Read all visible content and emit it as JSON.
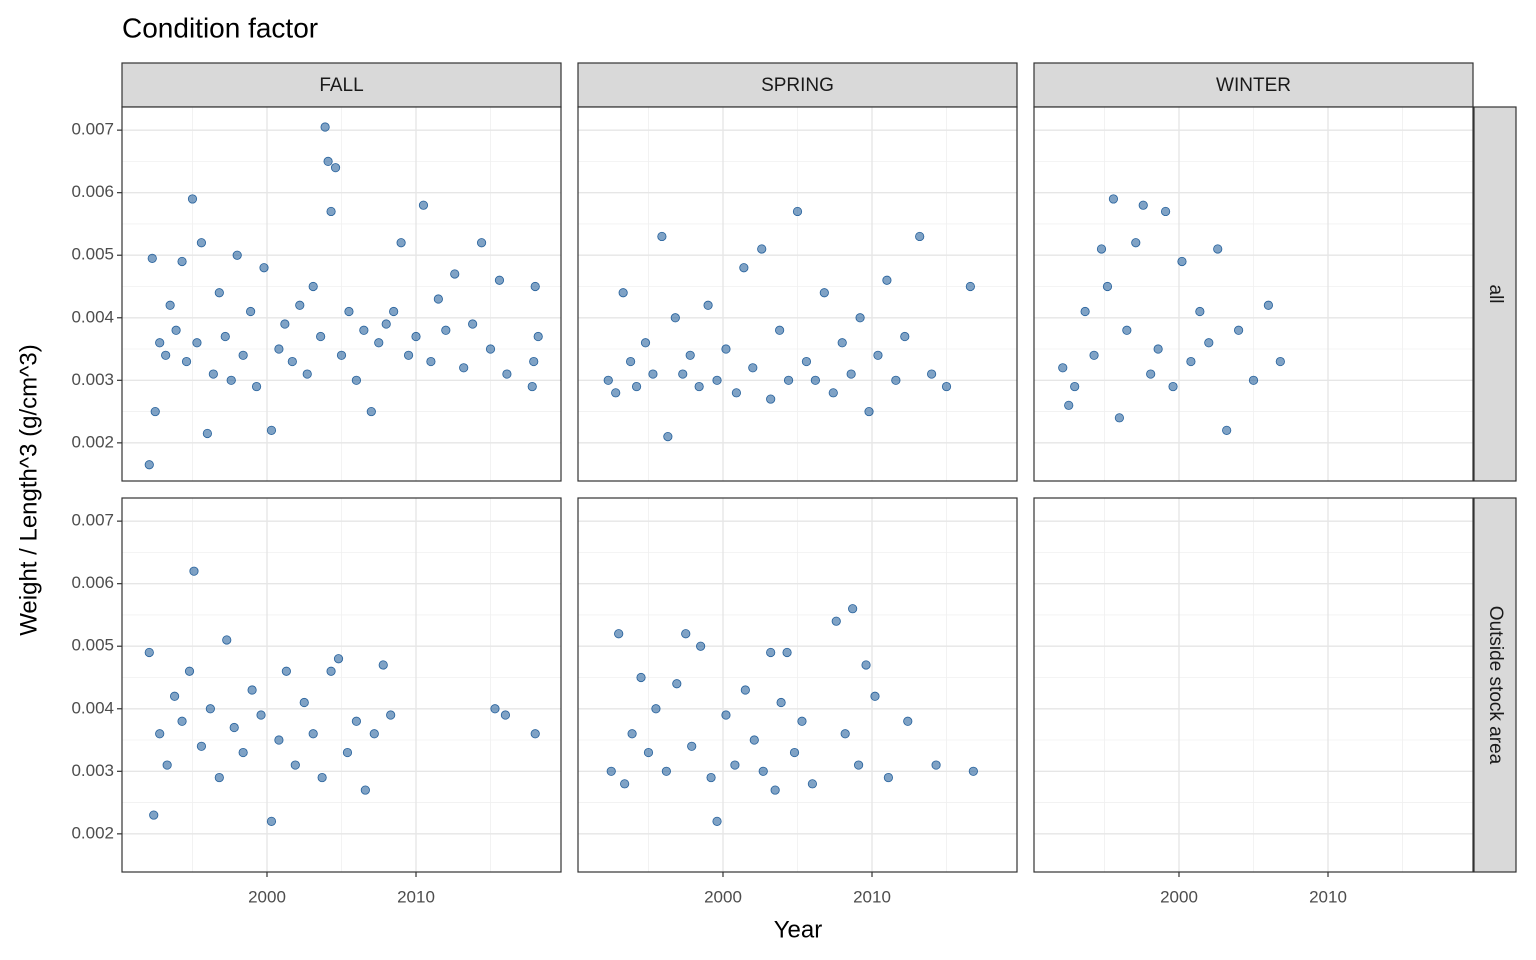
{
  "chart_data": {
    "type": "scatter",
    "title": "Condition factor",
    "x_label": "Year",
    "y_label": "Weight / Length^3 (g/cm^3)",
    "columns": [
      "FALL",
      "SPRING",
      "WINTER"
    ],
    "rows": [
      "all",
      "Outside stock area"
    ],
    "color": "#00468b",
    "xlim": [
      1990.27,
      2019.73
    ],
    "xticks": [
      2000,
      2010
    ],
    "xminor": [
      1995,
      2005,
      2015
    ],
    "ylim": [
      0.00139,
      0.00737
    ],
    "yticks": [
      0.002,
      0.003,
      0.004,
      0.005,
      0.006,
      0.007
    ],
    "yminor": [
      0.0025,
      0.0035,
      0.0045,
      0.0055,
      0.0065
    ],
    "grid": true,
    "panels": [
      [
        {
          "x": [
            1992.1,
            1992.3,
            1992.5,
            1992.8,
            1993.2,
            1993.5,
            1993.9,
            1994.3,
            1994.6,
            1995.0,
            1995.3,
            1995.6,
            1996.0,
            1996.4,
            1996.8,
            1997.2,
            1997.6,
            1998.0,
            1998.4,
            1998.9,
            1999.3,
            1999.8,
            2000.3,
            2000.8,
            2001.2,
            2001.7,
            2002.2,
            2002.7,
            2003.1,
            2003.6,
            2003.9,
            2004.1,
            2004.3,
            2004.6,
            2005.0,
            2005.5,
            2006.0,
            2006.5,
            2007.0,
            2007.5,
            2008.0,
            2008.5,
            2009.0,
            2009.5,
            2010.0,
            2010.5,
            2011.0,
            2011.5,
            2012.0,
            2012.6,
            2013.2,
            2013.8,
            2014.4,
            2015.0,
            2015.6,
            2016.1,
            2017.8,
            2018.0,
            2018.2,
            2017.9
          ],
          "y": [
            0.00165,
            0.00495,
            0.0025,
            0.0036,
            0.0034,
            0.0042,
            0.0038,
            0.0049,
            0.0033,
            0.0059,
            0.0036,
            0.0052,
            0.00215,
            0.0031,
            0.0044,
            0.0037,
            0.003,
            0.005,
            0.0034,
            0.0041,
            0.0029,
            0.0048,
            0.0022,
            0.0035,
            0.0039,
            0.0033,
            0.0042,
            0.0031,
            0.0045,
            0.0037,
            0.00705,
            0.0065,
            0.0057,
            0.0064,
            0.0034,
            0.0041,
            0.003,
            0.0038,
            0.0025,
            0.0036,
            0.0039,
            0.0041,
            0.0052,
            0.0034,
            0.0037,
            0.0058,
            0.0033,
            0.0043,
            0.0038,
            0.0047,
            0.0032,
            0.0039,
            0.0052,
            0.0035,
            0.0046,
            0.0031,
            0.0029,
            0.0045,
            0.0037,
            0.0033
          ]
        },
        {
          "x": [
            1992.3,
            1992.8,
            1993.3,
            1993.8,
            1994.2,
            1994.8,
            1995.3,
            1995.9,
            1996.3,
            1996.8,
            1997.3,
            1997.8,
            1998.4,
            1999.0,
            1999.6,
            2000.2,
            2000.9,
            2001.4,
            2002.0,
            2002.6,
            2003.2,
            2003.8,
            2004.4,
            2005.0,
            2005.6,
            2006.2,
            2006.8,
            2007.4,
            2008.0,
            2008.6,
            2009.2,
            2009.8,
            2010.4,
            2011.0,
            2011.6,
            2012.2,
            2013.2,
            2014.0,
            2015.0,
            2016.6
          ],
          "y": [
            0.003,
            0.0028,
            0.0044,
            0.0033,
            0.0029,
            0.0036,
            0.0031,
            0.0053,
            0.0021,
            0.004,
            0.0031,
            0.0034,
            0.0029,
            0.0042,
            0.003,
            0.0035,
            0.0028,
            0.0048,
            0.0032,
            0.0051,
            0.0027,
            0.0038,
            0.003,
            0.0057,
            0.0033,
            0.003,
            0.0044,
            0.0028,
            0.0036,
            0.0031,
            0.004,
            0.0025,
            0.0034,
            0.0046,
            0.003,
            0.0037,
            0.0053,
            0.0031,
            0.0029,
            0.0045
          ]
        },
        {
          "x": [
            1992.2,
            1992.6,
            1993.0,
            1993.7,
            1994.3,
            1994.8,
            1995.2,
            1995.6,
            1996.0,
            1996.5,
            1997.1,
            1997.6,
            1998.1,
            1998.6,
            1999.1,
            1999.6,
            2000.2,
            2000.8,
            2001.4,
            2002.0,
            2002.6,
            2003.2,
            2004.0,
            2005.0,
            2006.0,
            2006.8
          ],
          "y": [
            0.0032,
            0.0026,
            0.0029,
            0.0041,
            0.0034,
            0.0051,
            0.0045,
            0.0059,
            0.0024,
            0.0038,
            0.0052,
            0.0058,
            0.0031,
            0.0035,
            0.0057,
            0.0029,
            0.0049,
            0.0033,
            0.0041,
            0.0036,
            0.0051,
            0.0022,
            0.0038,
            0.003,
            0.0042,
            0.0033
          ]
        }
      ],
      [
        {
          "x": [
            1992.1,
            1992.4,
            1992.8,
            1993.3,
            1993.8,
            1994.3,
            1994.8,
            1995.1,
            1995.6,
            1996.2,
            1996.8,
            1997.3,
            1997.8,
            1998.4,
            1999.0,
            1999.6,
            2000.3,
            2000.8,
            2001.3,
            2001.9,
            2002.5,
            2003.1,
            2003.7,
            2004.3,
            2004.8,
            2005.4,
            2006.0,
            2006.6,
            2007.2,
            2007.8,
            2008.3,
            2015.3,
            2016.0,
            2018.0
          ],
          "y": [
            0.0049,
            0.0023,
            0.0036,
            0.0031,
            0.0042,
            0.0038,
            0.0046,
            0.0062,
            0.0034,
            0.004,
            0.0029,
            0.0051,
            0.0037,
            0.0033,
            0.0043,
            0.0039,
            0.0022,
            0.0035,
            0.0046,
            0.0031,
            0.0041,
            0.0036,
            0.0029,
            0.0046,
            0.0048,
            0.0033,
            0.0038,
            0.0027,
            0.0036,
            0.0047,
            0.0039,
            0.004,
            0.0039,
            0.0036
          ]
        },
        {
          "x": [
            1992.5,
            1993.0,
            1993.4,
            1993.9,
            1994.5,
            1995.0,
            1995.5,
            1996.2,
            1996.9,
            1997.5,
            1997.9,
            1998.5,
            1999.2,
            1999.6,
            2000.2,
            2000.8,
            2001.5,
            2002.1,
            2002.7,
            2003.2,
            2003.5,
            2003.9,
            2004.3,
            2004.8,
            2005.3,
            2006.0,
            2007.6,
            2008.2,
            2008.7,
            2009.1,
            2009.6,
            2010.2,
            2011.1,
            2012.4,
            2014.3,
            2016.8
          ],
          "y": [
            0.003,
            0.0052,
            0.0028,
            0.0036,
            0.0045,
            0.0033,
            0.004,
            0.003,
            0.0044,
            0.0052,
            0.0034,
            0.005,
            0.0029,
            0.0022,
            0.0039,
            0.0031,
            0.0043,
            0.0035,
            0.003,
            0.0049,
            0.0027,
            0.0041,
            0.0049,
            0.0033,
            0.0038,
            0.0028,
            0.0054,
            0.0036,
            0.0056,
            0.0031,
            0.0047,
            0.0042,
            0.0029,
            0.0038,
            0.0031,
            0.003
          ]
        },
        {
          "x": [],
          "y": []
        }
      ]
    ]
  }
}
